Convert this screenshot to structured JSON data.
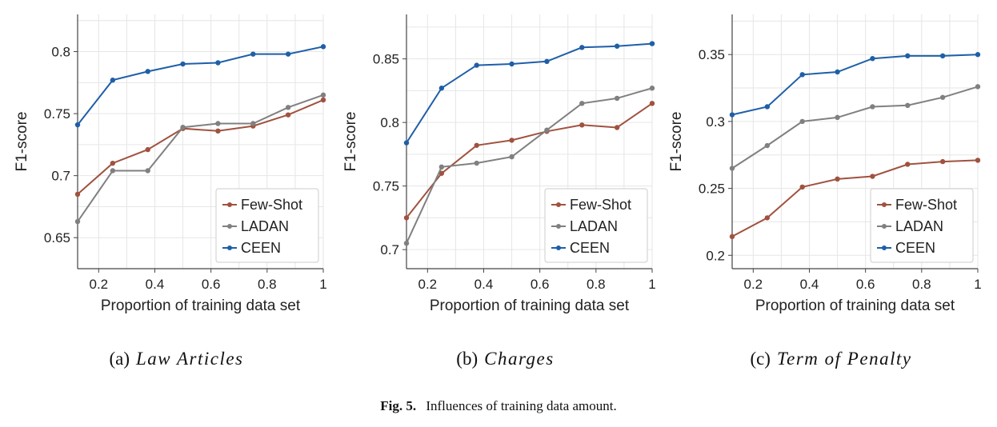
{
  "figure_caption": {
    "label": "Fig. 5.",
    "text": "Influences of training data amount."
  },
  "colors": {
    "few_shot": "#a0523f",
    "ladan": "#808080",
    "ceen": "#1f5fa8",
    "grid": "#e6e6e6",
    "axis": "#444444"
  },
  "chart_data": [
    {
      "type": "line",
      "subcaption_prefix": "(a)",
      "subcaption_name": "Law Articles",
      "xlabel": "Proportion of training data set",
      "ylabel": "F1-score",
      "x": [
        0.125,
        0.25,
        0.375,
        0.5,
        0.625,
        0.75,
        0.875,
        1.0
      ],
      "xlim": [
        0.125,
        1.0
      ],
      "ylim": [
        0.625,
        0.83
      ],
      "xticks": [
        0.2,
        0.4,
        0.6,
        0.8,
        1.0
      ],
      "xtick_labels": [
        "0.2",
        "0.4",
        "0.6",
        "0.8",
        "1"
      ],
      "yticks": [
        0.65,
        0.7,
        0.75,
        0.8
      ],
      "ytick_labels": [
        "0.65",
        "0.7",
        "0.75",
        "0.8"
      ],
      "legend_position": "lower-right",
      "series": [
        {
          "name": "Few-Shot",
          "color_key": "few_shot",
          "values": [
            0.685,
            0.71,
            0.721,
            0.738,
            0.736,
            0.74,
            0.749,
            0.761
          ]
        },
        {
          "name": "LADAN",
          "color_key": "ladan",
          "values": [
            0.663,
            0.704,
            0.704,
            0.739,
            0.742,
            0.742,
            0.755,
            0.765
          ]
        },
        {
          "name": "CEEN",
          "color_key": "ceen",
          "values": [
            0.741,
            0.777,
            0.784,
            0.79,
            0.791,
            0.798,
            0.798,
            0.804
          ]
        }
      ]
    },
    {
      "type": "line",
      "subcaption_prefix": "(b)",
      "subcaption_name": "Charges",
      "xlabel": "Proportion of training data set",
      "ylabel": "F1-score",
      "x": [
        0.125,
        0.25,
        0.375,
        0.5,
        0.625,
        0.75,
        0.875,
        1.0
      ],
      "xlim": [
        0.125,
        1.0
      ],
      "ylim": [
        0.685,
        0.885
      ],
      "xticks": [
        0.2,
        0.4,
        0.6,
        0.8,
        1.0
      ],
      "xtick_labels": [
        "0.2",
        "0.4",
        "0.6",
        "0.8",
        "1"
      ],
      "yticks": [
        0.7,
        0.75,
        0.8,
        0.85
      ],
      "ytick_labels": [
        "0.7",
        "0.75",
        "0.8",
        "0.85"
      ],
      "legend_position": "lower-right",
      "series": [
        {
          "name": "Few-Shot",
          "color_key": "few_shot",
          "values": [
            0.725,
            0.76,
            0.782,
            0.786,
            0.793,
            0.798,
            0.796,
            0.815
          ]
        },
        {
          "name": "LADAN",
          "color_key": "ladan",
          "values": [
            0.705,
            0.765,
            0.768,
            0.773,
            0.794,
            0.815,
            0.819,
            0.827
          ]
        },
        {
          "name": "CEEN",
          "color_key": "ceen",
          "values": [
            0.784,
            0.827,
            0.845,
            0.846,
            0.848,
            0.859,
            0.86,
            0.862
          ]
        }
      ]
    },
    {
      "type": "line",
      "subcaption_prefix": "(c)",
      "subcaption_name": "Term of Penalty",
      "xlabel": "Proportion of training data set",
      "ylabel": "F1-score",
      "x": [
        0.125,
        0.25,
        0.375,
        0.5,
        0.625,
        0.75,
        0.875,
        1.0
      ],
      "xlim": [
        0.125,
        1.0
      ],
      "ylim": [
        0.19,
        0.38
      ],
      "xticks": [
        0.2,
        0.4,
        0.6,
        0.8,
        1.0
      ],
      "xtick_labels": [
        "0.2",
        "0.4",
        "0.6",
        "0.8",
        "1"
      ],
      "yticks": [
        0.2,
        0.25,
        0.3,
        0.35
      ],
      "ytick_labels": [
        "0.2",
        "0.25",
        "0.3",
        "0.35"
      ],
      "legend_position": "lower-right",
      "series": [
        {
          "name": "Few-Shot",
          "color_key": "few_shot",
          "values": [
            0.214,
            0.228,
            0.251,
            0.257,
            0.259,
            0.268,
            0.27,
            0.271
          ]
        },
        {
          "name": "LADAN",
          "color_key": "ladan",
          "values": [
            0.265,
            0.282,
            0.3,
            0.303,
            0.311,
            0.312,
            0.318,
            0.326
          ]
        },
        {
          "name": "CEEN",
          "color_key": "ceen",
          "values": [
            0.305,
            0.311,
            0.335,
            0.337,
            0.347,
            0.349,
            0.349,
            0.35
          ]
        }
      ]
    }
  ]
}
